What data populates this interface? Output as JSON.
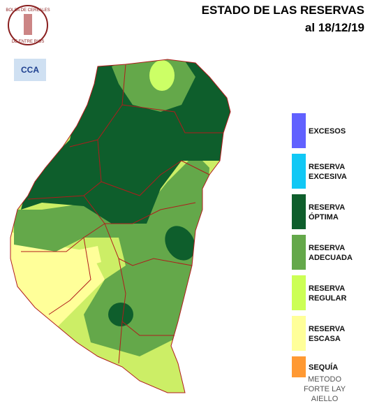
{
  "header": {
    "title": "ESTADO DE LAS RESERVAS",
    "date": "al 18/12/19"
  },
  "logos": {
    "bolsa_top": "BOLSA DE CEREALES",
    "bolsa_bottom": "DE ENTRE RIOS",
    "cca": "CCA"
  },
  "legend": [
    {
      "lines": [
        "EXCESOS"
      ],
      "color": "#6161ff"
    },
    {
      "lines": [
        "RESERVA",
        "EXCESIVA"
      ],
      "color": "#11c8f5"
    },
    {
      "lines": [
        "RESERVA",
        "ÓPTIMA"
      ],
      "color": "#0e5e2c"
    },
    {
      "lines": [
        "RESERVA",
        "ADECUADA"
      ],
      "color": "#64a84a"
    },
    {
      "lines": [
        "RESERVA",
        "REGULAR"
      ],
      "color": "#ccff55"
    },
    {
      "lines": [
        "RESERVA",
        "ESCASA"
      ],
      "color": "#ffff99"
    },
    {
      "lines": [
        "SEQUÍA"
      ],
      "color": "#ff9933"
    }
  ],
  "method": [
    "METODO",
    "FORTE LAY",
    "AIELLO"
  ]
}
